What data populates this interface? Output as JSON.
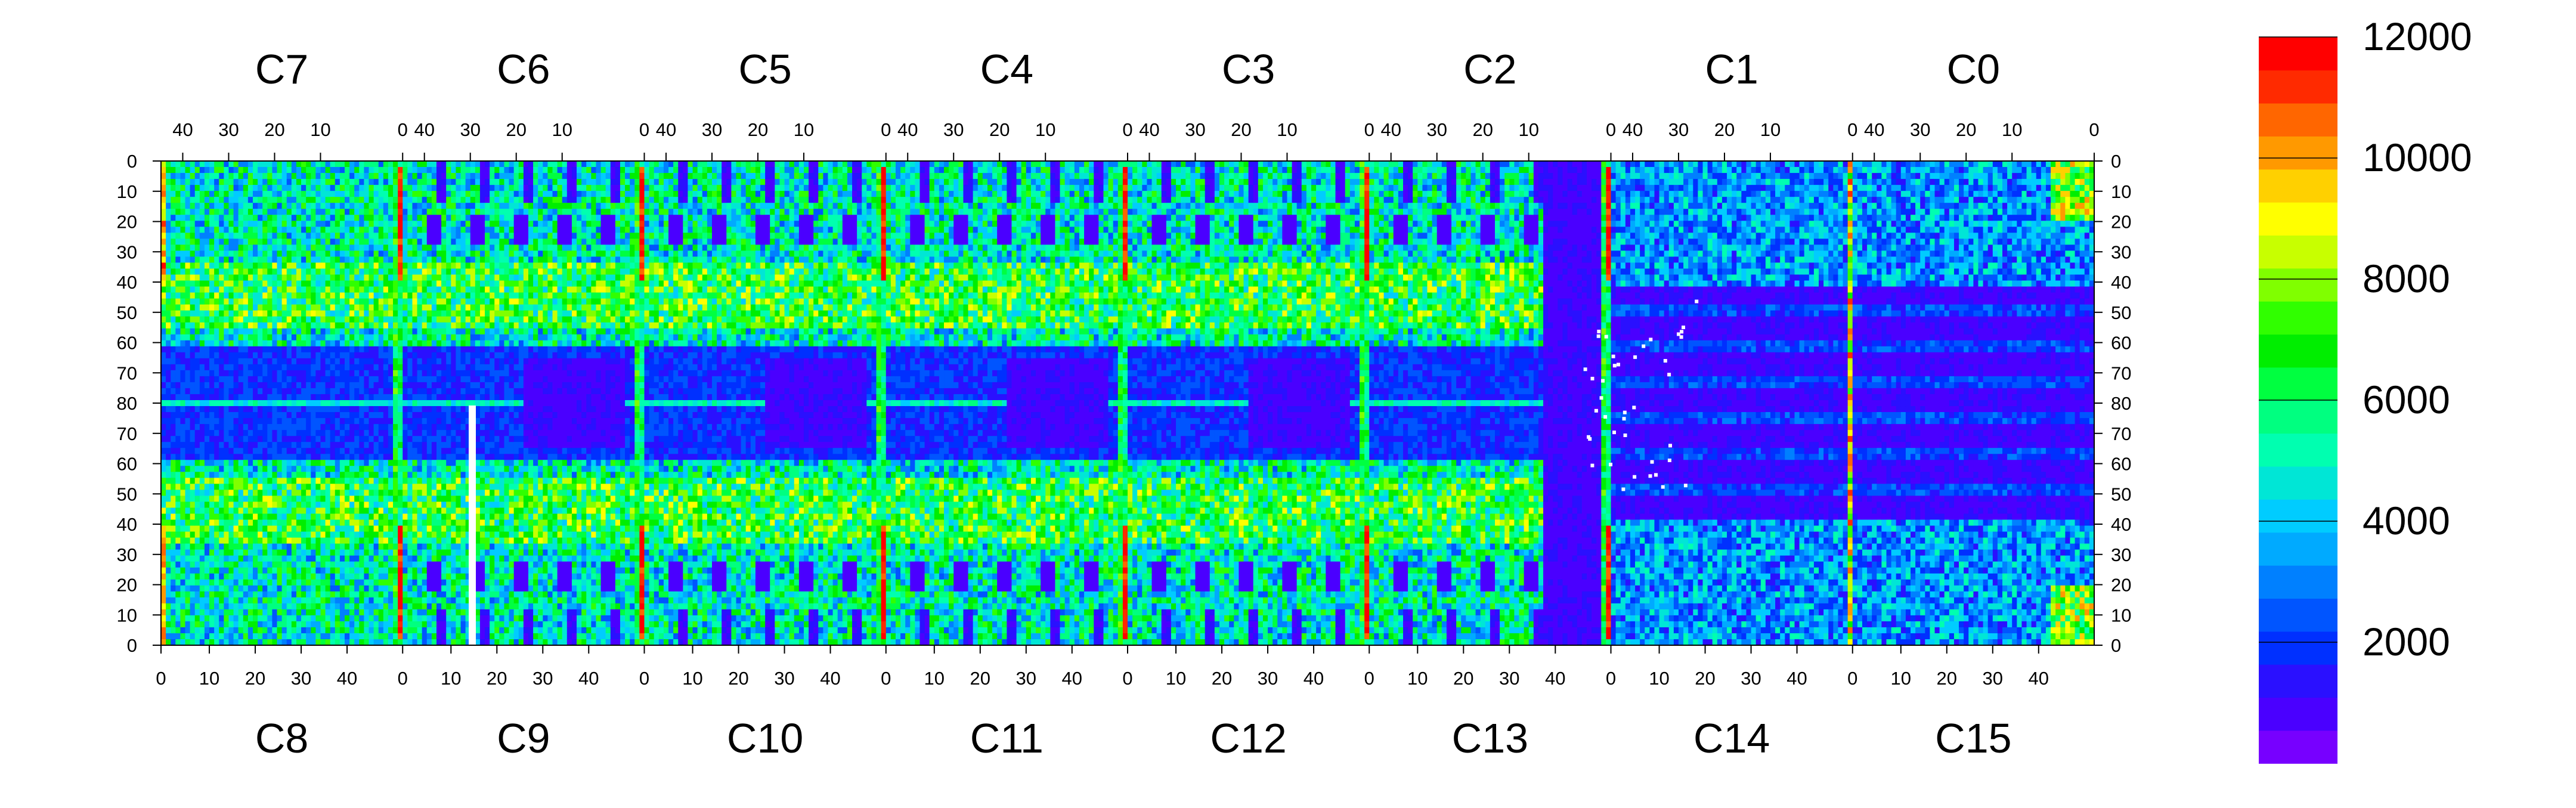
{
  "chart_data": {
    "type": "heatmap",
    "title": "",
    "xlabel": "",
    "ylabel": "",
    "rows": 81,
    "row_axis": {
      "top_half_ticks": [
        "0",
        "10",
        "20",
        "30",
        "40",
        "50",
        "60",
        "70",
        "80"
      ],
      "bottom_half_ticks": [
        "70",
        "60",
        "50",
        "40",
        "30",
        "20",
        "10",
        "0"
      ]
    },
    "top_chips": [
      {
        "name": "C7",
        "ticks": [
          "40",
          "30",
          "20",
          "10",
          "0"
        ]
      },
      {
        "name": "C6",
        "ticks": [
          "40",
          "30",
          "20",
          "10",
          "0"
        ]
      },
      {
        "name": "C5",
        "ticks": [
          "40",
          "30",
          "20",
          "10",
          "0"
        ]
      },
      {
        "name": "C4",
        "ticks": [
          "40",
          "30",
          "20",
          "10",
          "0"
        ]
      },
      {
        "name": "C3",
        "ticks": [
          "40",
          "30",
          "20",
          "10",
          "0"
        ]
      },
      {
        "name": "C2",
        "ticks": [
          "40",
          "30",
          "20",
          "10",
          "0"
        ]
      },
      {
        "name": "C1",
        "ticks": [
          "40",
          "30",
          "20",
          "10",
          "0"
        ]
      },
      {
        "name": "C0",
        "ticks": [
          "40",
          "30",
          "20",
          "10",
          "0"
        ]
      }
    ],
    "bottom_chips": [
      {
        "name": "C8",
        "ticks": [
          "0",
          "10",
          "20",
          "30",
          "40"
        ]
      },
      {
        "name": "C9",
        "ticks": [
          "0",
          "10",
          "20",
          "30",
          "40"
        ]
      },
      {
        "name": "C10",
        "ticks": [
          "0",
          "10",
          "20",
          "30",
          "40"
        ]
      },
      {
        "name": "C11",
        "ticks": [
          "0",
          "10",
          "20",
          "30",
          "40"
        ]
      },
      {
        "name": "C12",
        "ticks": [
          "0",
          "10",
          "20",
          "30",
          "40"
        ]
      },
      {
        "name": "C13",
        "ticks": [
          "0",
          "10",
          "20",
          "30",
          "40"
        ]
      },
      {
        "name": "C14",
        "ticks": [
          "0",
          "10",
          "20",
          "30",
          "40"
        ]
      },
      {
        "name": "C15",
        "ticks": [
          "0",
          "10",
          "20",
          "30",
          "40"
        ]
      }
    ],
    "colorbar": {
      "range": [
        0,
        12000
      ],
      "labels": [
        "12000",
        "10000",
        "8000",
        "6000",
        "4000",
        "2000"
      ],
      "colors": [
        "#7700ff",
        "#4a00ff",
        "#2a10ff",
        "#0030ff",
        "#0055ff",
        "#0080ff",
        "#00aaff",
        "#00ccff",
        "#00e6d6",
        "#00ffb0",
        "#00ff80",
        "#00ff40",
        "#00ee00",
        "#30ff00",
        "#80ff00",
        "#c8ff00",
        "#ffff00",
        "#ffd000",
        "#ff9900",
        "#ff6600",
        "#ff2a00",
        "#ff0000"
      ]
    }
  }
}
